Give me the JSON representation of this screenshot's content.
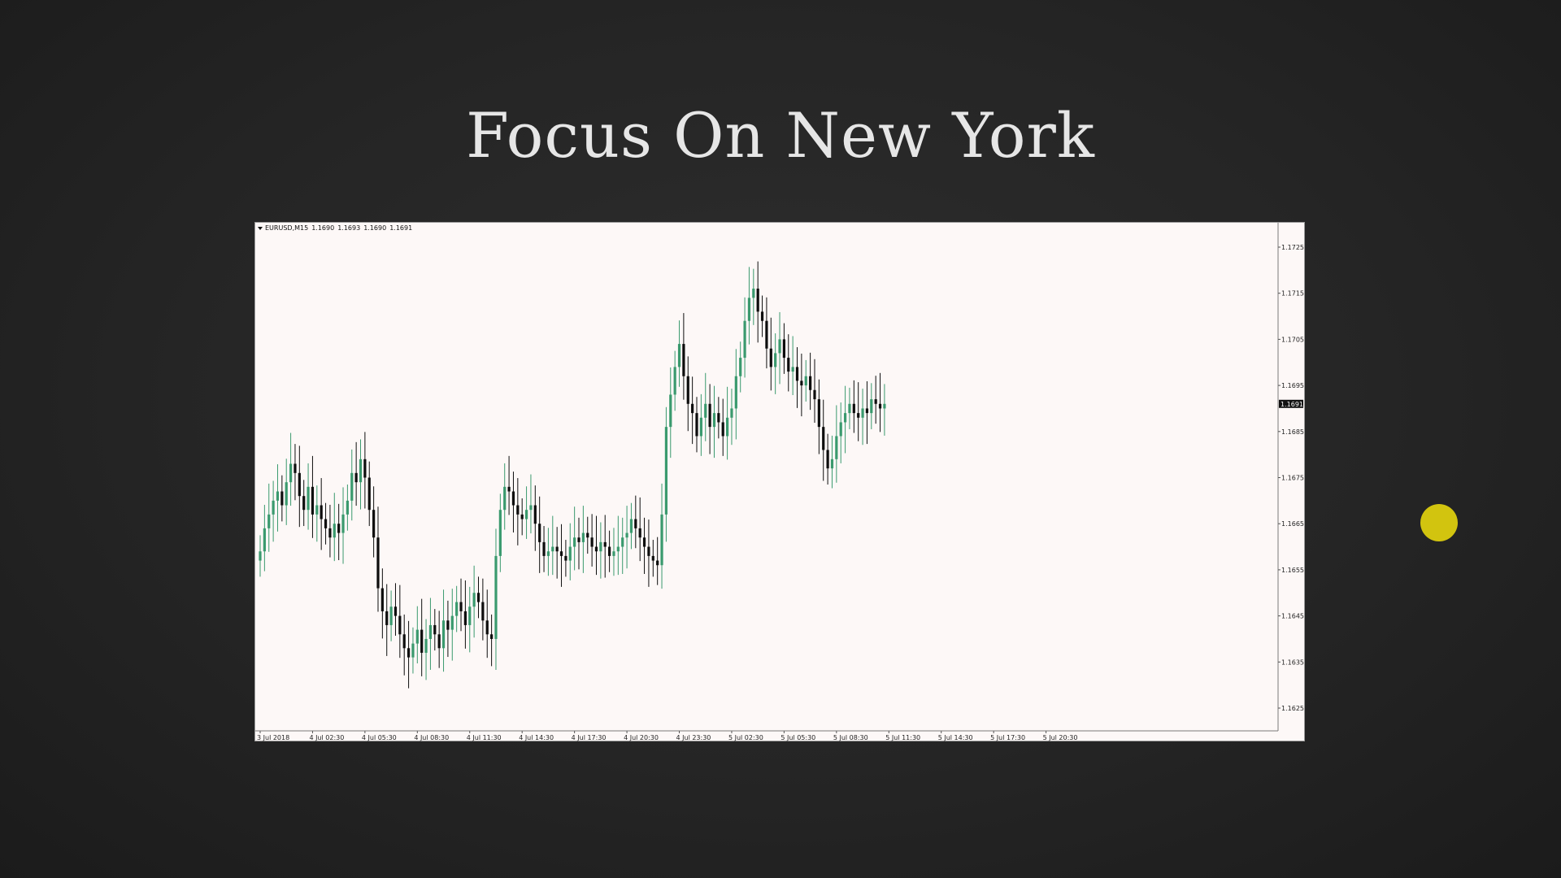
{
  "slide": {
    "title": "Focus On New York"
  },
  "chart_header": {
    "symbol": "EURUSD,M15",
    "open": "1.1690",
    "high": "1.1693",
    "low": "1.1690",
    "close": "1.1691"
  },
  "colors": {
    "background": "#252525",
    "chart_background": "#fdf8f7",
    "bull_candle": "#3a9a6e",
    "bear_candle": "#0d0d0d",
    "cursor_highlight": "#d2c40f"
  },
  "chart_data": {
    "type": "candlestick",
    "title": "",
    "xlabel": "",
    "ylabel": "",
    "ylim": [
      1.162,
      1.173
    ],
    "y_ticks": [
      "1.1725",
      "1.1715",
      "1.1705",
      "1.1695",
      "1.1685",
      "1.1675",
      "1.1665",
      "1.1655",
      "1.1645",
      "1.1635",
      "1.1625"
    ],
    "x_ticks": [
      "3 Jul 2018",
      "4 Jul 02:30",
      "4 Jul 05:30",
      "4 Jul 08:30",
      "4 Jul 11:30",
      "4 Jul 14:30",
      "4 Jul 17:30",
      "4 Jul 20:30",
      "4 Jul 23:30",
      "5 Jul 02:30",
      "5 Jul 05:30",
      "5 Jul 08:30",
      "5 Jul 11:30",
      "5 Jul 14:30",
      "5 Jul 17:30",
      "5 Jul 20:30"
    ],
    "bars_per_tick": 12,
    "current_price": "1.1691",
    "grid": false,
    "closes": [
      1.1659,
      1.1664,
      1.1667,
      1.167,
      1.1672,
      1.1669,
      1.1674,
      1.1678,
      1.1676,
      1.1671,
      1.1668,
      1.1673,
      1.1667,
      1.1669,
      1.1666,
      1.1664,
      1.1662,
      1.1665,
      1.1663,
      1.1667,
      1.167,
      1.1676,
      1.1674,
      1.1679,
      1.1675,
      1.1668,
      1.1662,
      1.1651,
      1.1646,
      1.1643,
      1.1647,
      1.1645,
      1.1641,
      1.1638,
      1.1636,
      1.1639,
      1.1642,
      1.1637,
      1.164,
      1.1643,
      1.1641,
      1.1638,
      1.1644,
      1.1642,
      1.1645,
      1.1648,
      1.1646,
      1.1643,
      1.1647,
      1.165,
      1.1648,
      1.1644,
      1.1641,
      1.164,
      1.1658,
      1.1668,
      1.1673,
      1.1672,
      1.1669,
      1.1667,
      1.1666,
      1.1668,
      1.1669,
      1.1665,
      1.1661,
      1.1658,
      1.1659,
      1.166,
      1.1659,
      1.1658,
      1.1657,
      1.166,
      1.1662,
      1.1661,
      1.1663,
      1.1662,
      1.166,
      1.1659,
      1.1661,
      1.166,
      1.1658,
      1.1659,
      1.166,
      1.1662,
      1.1663,
      1.1666,
      1.1664,
      1.1662,
      1.166,
      1.1658,
      1.1657,
      1.1656,
      1.1667,
      1.1686,
      1.1693,
      1.1699,
      1.1704,
      1.1697,
      1.1691,
      1.1689,
      1.1684,
      1.1688,
      1.1691,
      1.1686,
      1.1689,
      1.1687,
      1.1684,
      1.1688,
      1.169,
      1.1697,
      1.1701,
      1.1709,
      1.1714,
      1.1716,
      1.1711,
      1.1709,
      1.1703,
      1.1699,
      1.1702,
      1.1705,
      1.1701,
      1.1698,
      1.1699,
      1.1696,
      1.1695,
      1.1697,
      1.1694,
      1.1692,
      1.1686,
      1.1681,
      1.1677,
      1.1679,
      1.1684,
      1.1687,
      1.1689,
      1.1691,
      1.1689,
      1.1688,
      1.169,
      1.1689,
      1.1692,
      1.1691,
      1.169,
      1.1691
    ]
  }
}
